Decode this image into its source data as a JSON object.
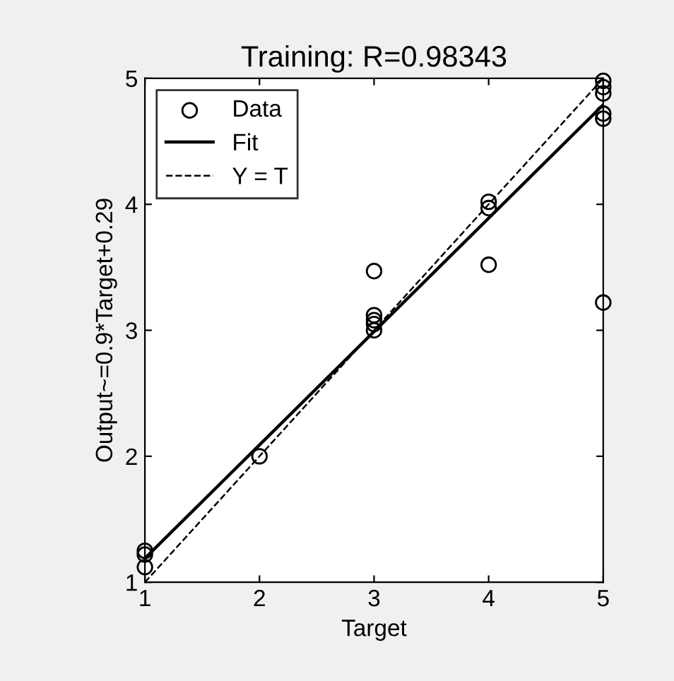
{
  "chart_data": {
    "type": "scatter",
    "title": "Training: R=0.98343",
    "xlabel": "Target",
    "ylabel": "Output~=0.9*Target+0.29",
    "xlim": [
      1,
      5
    ],
    "ylim": [
      1,
      5
    ],
    "xticks": [
      1,
      2,
      3,
      4,
      5
    ],
    "yticks": [
      1,
      2,
      3,
      4,
      5
    ],
    "grid": false,
    "legend": "top left",
    "series": [
      {
        "name": "Data",
        "marker": "circle",
        "color": "#000000",
        "x": [
          1,
          1,
          1,
          2,
          3,
          3,
          3,
          3,
          3,
          4,
          4,
          4,
          5,
          5,
          5,
          5,
          5,
          5
        ],
        "values": [
          1.25,
          1.22,
          1.12,
          2.0,
          3.47,
          3.12,
          3.08,
          3.05,
          3.0,
          4.02,
          3.97,
          3.52,
          4.98,
          4.93,
          4.88,
          4.72,
          4.68,
          3.22
        ]
      },
      {
        "name": "Fit",
        "type": "line",
        "line_style": "solid",
        "color": "#000000",
        "x": [
          1,
          5
        ],
        "values": [
          1.19,
          4.79
        ]
      },
      {
        "name": "Y = T",
        "type": "line",
        "line_style": "dashed",
        "color": "#000000",
        "x": [
          1,
          5
        ],
        "values": [
          1,
          5
        ]
      }
    ]
  }
}
